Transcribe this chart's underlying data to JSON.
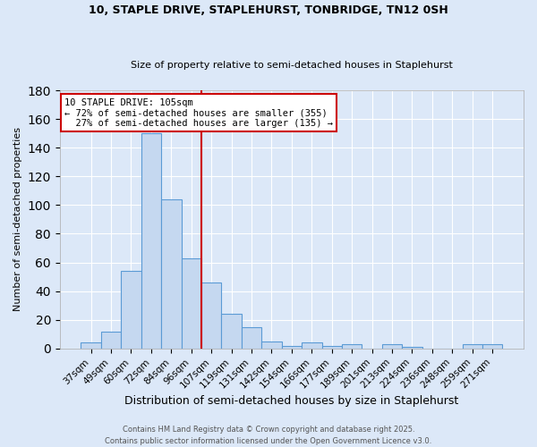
{
  "title_line1": "10, STAPLE DRIVE, STAPLEHURST, TONBRIDGE, TN12 0SH",
  "title_line2": "Size of property relative to semi-detached houses in Staplehurst",
  "xlabel": "Distribution of semi-detached houses by size in Staplehurst",
  "ylabel": "Number of semi-detached properties",
  "categories": [
    "37sqm",
    "49sqm",
    "60sqm",
    "72sqm",
    "84sqm",
    "96sqm",
    "107sqm",
    "119sqm",
    "131sqm",
    "142sqm",
    "154sqm",
    "166sqm",
    "177sqm",
    "189sqm",
    "201sqm",
    "213sqm",
    "224sqm",
    "236sqm",
    "248sqm",
    "259sqm",
    "271sqm"
  ],
  "values": [
    4,
    12,
    54,
    150,
    104,
    63,
    46,
    24,
    15,
    5,
    2,
    4,
    2,
    3,
    0,
    3,
    1,
    0,
    0,
    3,
    3
  ],
  "bar_color": "#c5d8f0",
  "bar_edge_color": "#5b9bd5",
  "vline_color": "#cc0000",
  "annotation_text": "10 STAPLE DRIVE: 105sqm\n← 72% of semi-detached houses are smaller (355)\n  27% of semi-detached houses are larger (135) →",
  "annotation_box_color": "#ffffff",
  "annotation_box_edge": "#cc0000",
  "ylim": [
    0,
    180
  ],
  "yticks": [
    0,
    20,
    40,
    60,
    80,
    100,
    120,
    140,
    160,
    180
  ],
  "footer_line1": "Contains HM Land Registry data © Crown copyright and database right 2025.",
  "footer_line2": "Contains public sector information licensed under the Open Government Licence v3.0.",
  "bg_color": "#dce8f8",
  "plot_bg_color": "#dce8f8",
  "grid_color": "#ffffff",
  "title_fontsize": 9,
  "subtitle_fontsize": 8
}
